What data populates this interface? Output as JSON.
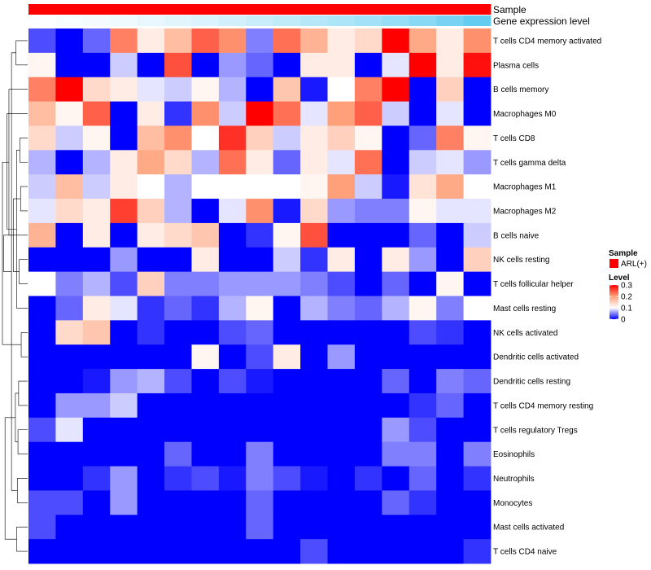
{
  "chart_data": {
    "type": "heatmap",
    "title": "",
    "annotations": [
      {
        "name": "Sample",
        "values": [
          "ARL(+)",
          "ARL(+)",
          "ARL(+)",
          "ARL(+)",
          "ARL(+)",
          "ARL(+)",
          "ARL(+)",
          "ARL(+)",
          "ARL(+)",
          "ARL(+)",
          "ARL(+)",
          "ARL(+)",
          "ARL(+)",
          "ARL(+)",
          "ARL(+)",
          "ARL(+)",
          "ARL(+)"
        ],
        "colors": {
          "ARL(+)": "#ff0000"
        }
      },
      {
        "name": "Gene expression level",
        "values": [
          0.02,
          0.04,
          0.07,
          0.1,
          0.14,
          0.18,
          0.22,
          0.27,
          0.32,
          0.37,
          0.43,
          0.49,
          0.55,
          0.62,
          0.7,
          0.8,
          0.92
        ]
      }
    ],
    "rows": [
      "T cells CD4 memory activated",
      "Plasma cells",
      "B cells memory",
      "Macrophages M0",
      "T cells CD8",
      "T cells gamma delta",
      "Macrophages M1",
      "Macrophages M2",
      "B cells naive",
      "NK cells resting",
      "T cells follicular helper",
      "Mast cells resting",
      "NK cells activated",
      "Dendritic cells activated",
      "Dendritic cells resting",
      "T cells CD4 memory resting",
      "T cells regulatory  Tregs",
      "Eosinophils",
      "Neutrophils",
      "Monocytes",
      "Mast cells activated",
      "T cells CD4 naive"
    ],
    "values": [
      [
        0.03,
        0.0,
        0.04,
        0.22,
        0.12,
        0.17,
        0.24,
        0.21,
        0.05,
        0.23,
        0.18,
        0.12,
        0.14,
        0.3,
        0.19,
        0.12,
        0.21
      ],
      [
        0.11,
        0.0,
        0.0,
        0.08,
        0.0,
        0.25,
        0.0,
        0.06,
        0.04,
        0.0,
        0.12,
        0.12,
        0.0,
        0.09,
        0.3,
        0.12,
        0.29
      ],
      [
        0.22,
        0.3,
        0.14,
        0.12,
        0.09,
        0.08,
        0.11,
        0.07,
        0.0,
        0.16,
        0.01,
        0.1,
        0.22,
        0.3,
        0.0,
        0.15,
        0.0
      ],
      [
        0.17,
        0.11,
        0.24,
        0.0,
        0.12,
        0.02,
        0.21,
        0.08,
        0.3,
        0.23,
        0.09,
        0.2,
        0.24,
        0.08,
        0.0,
        0.09,
        0.0
      ],
      [
        0.14,
        0.08,
        0.11,
        0.0,
        0.17,
        0.21,
        0.1,
        0.27,
        0.15,
        0.08,
        0.12,
        0.15,
        0.11,
        0.0,
        0.04,
        0.22,
        0.11
      ],
      [
        0.07,
        0.0,
        0.07,
        0.12,
        0.19,
        0.14,
        0.07,
        0.23,
        0.12,
        0.04,
        0.12,
        0.09,
        0.23,
        0.0,
        0.08,
        0.09,
        0.06
      ],
      [
        0.08,
        0.17,
        0.08,
        0.12,
        0.1,
        0.07,
        0.1,
        0.1,
        0.1,
        0.1,
        0.11,
        0.2,
        0.08,
        0.01,
        0.13,
        0.19,
        0.1
      ],
      [
        0.09,
        0.14,
        0.12,
        0.26,
        0.15,
        0.07,
        0.0,
        0.09,
        0.21,
        0.01,
        0.14,
        0.06,
        0.05,
        0.05,
        0.11,
        0.09,
        0.09
      ],
      [
        0.18,
        0.0,
        0.12,
        0.0,
        0.12,
        0.14,
        0.16,
        0.0,
        0.02,
        0.11,
        0.25,
        0.0,
        0.0,
        0.0,
        0.04,
        0.0,
        0.08
      ],
      [
        0.0,
        0.0,
        0.0,
        0.06,
        0.0,
        0.0,
        0.12,
        0.0,
        0.0,
        0.08,
        0.02,
        0.12,
        0.0,
        0.12,
        0.06,
        0.0,
        0.15
      ],
      [
        0.1,
        0.05,
        0.07,
        0.03,
        0.15,
        0.05,
        0.05,
        0.06,
        0.06,
        0.06,
        0.05,
        0.03,
        0.0,
        0.04,
        0.0,
        0.11,
        0.0
      ],
      [
        0.0,
        0.04,
        0.12,
        0.09,
        0.02,
        0.04,
        0.02,
        0.07,
        0.11,
        0.0,
        0.07,
        0.05,
        0.04,
        0.07,
        0.11,
        0.05,
        0.1
      ],
      [
        0.0,
        0.14,
        0.16,
        0.0,
        0.02,
        0.0,
        0.0,
        0.03,
        0.04,
        0.0,
        0.0,
        0.0,
        0.0,
        0.0,
        0.03,
        0.02,
        0.0
      ],
      [
        0.0,
        0.0,
        0.0,
        0.0,
        0.0,
        0.0,
        0.11,
        0.0,
        0.03,
        0.12,
        0.0,
        0.06,
        0.0,
        0.0,
        0.0,
        0.0,
        0.0
      ],
      [
        0.0,
        0.0,
        0.01,
        0.06,
        0.07,
        0.03,
        0.0,
        0.03,
        0.01,
        0.0,
        0.0,
        0.0,
        0.0,
        0.04,
        0.0,
        0.05,
        0.04
      ],
      [
        0.0,
        0.06,
        0.06,
        0.08,
        0.0,
        0.0,
        0.0,
        0.0,
        0.0,
        0.0,
        0.0,
        0.0,
        0.0,
        0.0,
        0.02,
        0.04,
        0.0
      ],
      [
        0.03,
        0.09,
        0.0,
        0.0,
        0.0,
        0.0,
        0.0,
        0.0,
        0.0,
        0.0,
        0.0,
        0.0,
        0.0,
        0.06,
        0.03,
        0.0,
        0.0
      ],
      [
        0.0,
        0.0,
        0.0,
        0.0,
        0.0,
        0.04,
        0.0,
        0.0,
        0.05,
        0.0,
        0.0,
        0.0,
        0.0,
        0.05,
        0.05,
        0.0,
        0.05
      ],
      [
        0.0,
        0.0,
        0.02,
        0.06,
        0.0,
        0.02,
        0.03,
        0.01,
        0.05,
        0.03,
        0.01,
        0.0,
        0.02,
        0.0,
        0.04,
        0.0,
        0.02
      ],
      [
        0.03,
        0.03,
        0.0,
        0.06,
        0.0,
        0.0,
        0.0,
        0.0,
        0.04,
        0.0,
        0.0,
        0.0,
        0.0,
        0.04,
        0.02,
        0.0,
        0.0
      ],
      [
        0.03,
        0.0,
        0.0,
        0.0,
        0.0,
        0.0,
        0.0,
        0.0,
        0.04,
        0.0,
        0.0,
        0.0,
        0.0,
        0.0,
        0.0,
        0.0,
        0.0
      ],
      [
        0.0,
        0.0,
        0.0,
        0.0,
        0.0,
        0.0,
        0.0,
        0.0,
        0.0,
        0.0,
        0.03,
        0.0,
        0.0,
        0.0,
        0.0,
        0.0,
        0.02
      ]
    ],
    "dendrogram_merges": [
      [
        0,
        1,
        0.9
      ],
      [
        4,
        5,
        0.6
      ],
      [
        6,
        7,
        0.55
      ],
      [
        12,
        13,
        0.5
      ],
      [
        9,
        10,
        0.65
      ],
      [
        14,
        15,
        0.7
      ],
      [
        16,
        17,
        0.75
      ],
      [
        18,
        19,
        0.8
      ],
      [
        20,
        21,
        0.85
      ],
      [
        26,
        24,
        1.1
      ],
      [
        23,
        11,
        0.85
      ],
      [
        28,
        27,
        0.95
      ],
      [
        29,
        22,
        1.25
      ],
      [
        31,
        2,
        1.45
      ],
      [
        32,
        3,
        1.6
      ],
      [
        33,
        30,
        1.75
      ],
      [
        34,
        8,
        1.85
      ],
      [
        35,
        25,
        1.95
      ]
    ],
    "color_scale": {
      "stops": [
        0,
        0.1,
        0.2,
        0.3
      ],
      "colors": [
        "#0000ff",
        "#ffffff",
        "#ffa07a",
        "#ff0000"
      ]
    },
    "legend": [
      {
        "title": "Sample",
        "entries": [
          {
            "label": "ARL(+)",
            "color": "#ff0000"
          }
        ]
      },
      {
        "title": "Level",
        "ticks": [
          "0.3",
          "0.2",
          "0.1",
          "0"
        ]
      }
    ]
  }
}
